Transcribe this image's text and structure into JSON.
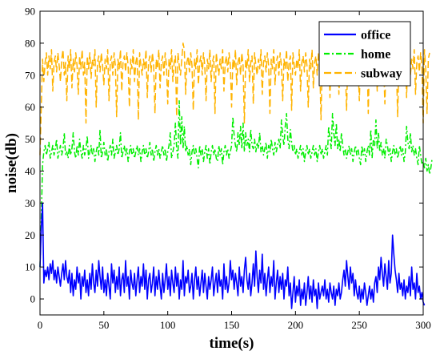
{
  "chart_data": {
    "type": "line",
    "xlabel": "time(s)",
    "ylabel": "noise(db)",
    "xlim": [
      0,
      300
    ],
    "ylim": [
      -5,
      90
    ],
    "x_ticks": [
      0,
      50,
      100,
      150,
      200,
      250,
      300
    ],
    "y_ticks": [
      0,
      10,
      20,
      30,
      40,
      50,
      60,
      70,
      80,
      90
    ],
    "x_tick_labels": [
      "0",
      "50",
      "100",
      "150",
      "200",
      "250",
      "300"
    ],
    "y_tick_labels": [
      "0",
      "10",
      "20",
      "30",
      "40",
      "50",
      "60",
      "70",
      "80",
      "90"
    ],
    "grid": false,
    "legend_position": "top-right",
    "sample_step_s": 1,
    "series": [
      {
        "name": "office",
        "color": "#0000ff",
        "dash": "solid",
        "values": [
          10,
          22,
          30,
          5,
          9,
          7,
          10,
          6,
          11,
          8,
          12,
          6,
          9,
          5,
          10,
          7,
          4,
          8,
          11,
          6,
          12,
          7,
          5,
          9,
          2,
          8,
          1,
          6,
          3,
          10,
          5,
          8,
          0,
          7,
          4,
          9,
          2,
          6,
          1,
          8,
          3,
          11,
          5,
          2,
          9,
          4,
          12,
          7,
          3,
          10,
          2,
          6,
          1,
          8,
          4,
          0,
          11,
          5,
          9,
          2,
          7,
          3,
          10,
          1,
          6,
          8,
          2,
          12,
          4,
          7,
          0,
          9,
          5,
          3,
          8,
          1,
          6,
          10,
          2,
          7,
          4,
          11,
          3,
          9,
          0,
          6,
          8,
          2,
          5,
          10,
          1,
          7,
          3,
          9,
          4,
          0,
          8,
          2,
          6,
          11,
          3,
          7,
          1,
          9,
          5,
          2,
          10,
          4,
          8,
          0,
          6,
          3,
          12,
          1,
          7,
          5,
          9,
          2,
          4,
          8,
          0,
          6,
          10,
          3,
          7,
          1,
          5,
          9,
          2,
          8,
          4,
          0,
          7,
          3,
          6,
          10,
          1,
          5,
          8,
          2,
          9,
          4,
          6,
          0,
          11,
          3,
          7,
          2,
          5,
          12,
          6,
          9,
          3,
          8,
          5,
          1,
          10,
          4,
          7,
          2,
          9,
          13,
          6,
          3,
          8,
          1,
          5,
          11,
          4,
          15,
          7,
          2,
          9,
          5,
          14,
          3,
          8,
          1,
          6,
          10,
          2,
          7,
          4,
          12,
          0,
          5,
          9,
          2,
          7,
          3,
          8,
          0,
          6,
          4,
          10,
          1,
          5,
          -3,
          2,
          7,
          -1,
          4,
          1,
          6,
          -2,
          3,
          0,
          5,
          -2,
          2,
          7,
          0,
          4,
          -1,
          6,
          1,
          3,
          -3,
          5,
          0,
          2,
          4,
          1,
          6,
          0,
          3,
          -1,
          5,
          2,
          0,
          4,
          -2,
          3,
          1,
          5,
          0,
          2,
          6,
          9,
          4,
          12,
          7,
          3,
          10,
          5,
          8,
          1,
          6,
          2,
          0,
          4,
          -1,
          3,
          0,
          5,
          2,
          -2,
          1,
          4,
          0,
          3,
          -1,
          5,
          7,
          2,
          10,
          6,
          13,
          8,
          4,
          11,
          7,
          3,
          12,
          5,
          8,
          20,
          14,
          9,
          6,
          2,
          8,
          3,
          5,
          1,
          6,
          0,
          4,
          2,
          7,
          1,
          10,
          3,
          5,
          0,
          8,
          2,
          4,
          0,
          2,
          -1,
          -2
        ]
      },
      {
        "name": "home",
        "color": "#00ee00",
        "dash": "dash-dot",
        "values": [
          10,
          25,
          42,
          46,
          48,
          45,
          47,
          49,
          44,
          46,
          48,
          45,
          47,
          50,
          44,
          46,
          48,
          45,
          47,
          52,
          45,
          46,
          44,
          48,
          45,
          47,
          52,
          46,
          44,
          48,
          45,
          50,
          46,
          44,
          48,
          45,
          47,
          51,
          44,
          46,
          48,
          45,
          47,
          43,
          46,
          48,
          45,
          53,
          44,
          46,
          49,
          45,
          47,
          43,
          46,
          48,
          45,
          50,
          44,
          46,
          48,
          45,
          47,
          52,
          44,
          46,
          48,
          45,
          47,
          43,
          46,
          48,
          45,
          47,
          44,
          46,
          48,
          45,
          47,
          43,
          46,
          48,
          45,
          47,
          44,
          46,
          49,
          45,
          47,
          43,
          46,
          48,
          45,
          47,
          44,
          46,
          48,
          45,
          47,
          43,
          46,
          48,
          52,
          44,
          46,
          48,
          55,
          47,
          44,
          62,
          48,
          57,
          47,
          54,
          46,
          48,
          45,
          47,
          42,
          46,
          48,
          45,
          47,
          44,
          41,
          48,
          45,
          47,
          43,
          46,
          48,
          44,
          47,
          42,
          46,
          48,
          45,
          47,
          44,
          43,
          48,
          45,
          47,
          42,
          46,
          48,
          45,
          47,
          44,
          46,
          48,
          57,
          51,
          48,
          46,
          52,
          48,
          54,
          47,
          55,
          46,
          52,
          48,
          50,
          46,
          53,
          48,
          47,
          50,
          46,
          49,
          47,
          52,
          46,
          48,
          45,
          47,
          49,
          44,
          48,
          46,
          50,
          47,
          45,
          49,
          46,
          48,
          50,
          47,
          56,
          51,
          48,
          54,
          58,
          50,
          47,
          53,
          49,
          46,
          48,
          45,
          47,
          44,
          46,
          48,
          45,
          47,
          43,
          46,
          48,
          45,
          47,
          44,
          46,
          48,
          45,
          47,
          43,
          46,
          48,
          45,
          47,
          44,
          46,
          48,
          45,
          54,
          50,
          47,
          58,
          52,
          48,
          55,
          47,
          50,
          46,
          52,
          48,
          45,
          47,
          44,
          46,
          48,
          45,
          47,
          43,
          46,
          48,
          45,
          47,
          44,
          42,
          48,
          45,
          47,
          43,
          46,
          48,
          45,
          53,
          44,
          50,
          48,
          56,
          47,
          52,
          46,
          49,
          45,
          47,
          44,
          50,
          48,
          45,
          47,
          43,
          46,
          48,
          45,
          47,
          44,
          46,
          48,
          45,
          47,
          43,
          46,
          54,
          49,
          47,
          52,
          46,
          48,
          45,
          47,
          44,
          42,
          48,
          45,
          42,
          43,
          41,
          44,
          40,
          42,
          39,
          41,
          44
        ]
      },
      {
        "name": "subway",
        "color": "#ffb300",
        "dash": "dashed",
        "values": [
          45,
          60,
          75,
          68,
          74,
          77,
          70,
          76,
          72,
          78,
          65,
          74,
          76,
          71,
          77,
          73,
          68,
          75,
          78,
          70,
          74,
          62,
          76,
          72,
          78,
          66,
          75,
          71,
          77,
          73,
          64,
          76,
          72,
          78,
          70,
          74,
          55,
          76,
          72,
          77,
          69,
          75,
          73,
          78,
          60,
          74,
          76,
          71,
          77,
          73,
          67,
          75,
          72,
          78,
          62,
          74,
          76,
          70,
          77,
          73,
          57,
          75,
          72,
          78,
          65,
          74,
          76,
          71,
          77,
          73,
          60,
          75,
          72,
          78,
          68,
          74,
          76,
          56,
          77,
          73,
          70,
          75,
          72,
          78,
          63,
          74,
          76,
          71,
          77,
          73,
          58,
          75,
          72,
          78,
          66,
          74,
          76,
          70,
          77,
          73,
          61,
          75,
          72,
          78,
          68,
          74,
          76,
          57,
          77,
          73,
          70,
          75,
          80,
          78,
          64,
          74,
          76,
          71,
          77,
          73,
          59,
          75,
          72,
          78,
          67,
          74,
          76,
          70,
          77,
          73,
          62,
          75,
          72,
          78,
          68,
          74,
          76,
          58,
          77,
          73,
          70,
          75,
          72,
          78,
          65,
          74,
          76,
          71,
          77,
          73,
          60,
          75,
          72,
          78,
          67,
          74,
          76,
          70,
          77,
          73,
          55,
          75,
          72,
          78,
          68,
          74,
          76,
          61,
          77,
          73,
          70,
          75,
          72,
          78,
          64,
          74,
          76,
          71,
          77,
          73,
          58,
          75,
          72,
          78,
          67,
          74,
          76,
          70,
          77,
          73,
          62,
          75,
          72,
          78,
          68,
          74,
          76,
          59,
          77,
          73,
          70,
          75,
          72,
          78,
          65,
          74,
          76,
          71,
          77,
          73,
          60,
          75,
          72,
          78,
          66,
          74,
          76,
          70,
          77,
          73,
          56,
          75,
          72,
          78,
          68,
          74,
          76,
          63,
          77,
          73,
          70,
          75,
          72,
          78,
          64,
          74,
          76,
          71,
          77,
          73,
          59,
          75,
          72,
          78,
          67,
          74,
          76,
          70,
          77,
          73,
          62,
          75,
          72,
          78,
          68,
          74,
          76,
          58,
          77,
          73,
          70,
          75,
          72,
          78,
          65,
          74,
          76,
          71,
          77,
          73,
          61,
          75,
          72,
          78,
          67,
          74,
          76,
          70,
          77,
          73,
          57,
          75,
          72,
          78,
          68,
          74,
          76,
          63,
          77,
          73,
          70,
          75,
          72,
          78,
          64,
          74,
          76,
          71,
          77,
          73,
          55,
          78,
          72,
          58,
          75,
          77
        ]
      }
    ]
  }
}
